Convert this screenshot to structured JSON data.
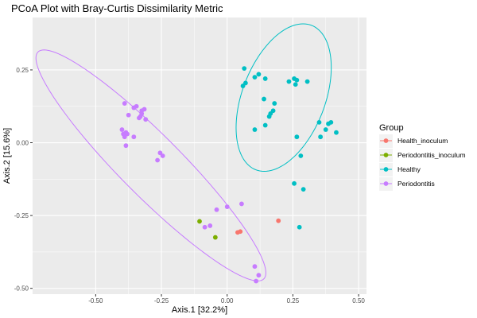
{
  "chart_data": {
    "type": "scatter",
    "title": "PCoA Plot with Bray-Curtis Dissimilarity Metric",
    "xlabel": "Axis.1   [32.2%]",
    "ylabel": "Axis.2   [15.6%]",
    "xlim": [
      -0.74,
      0.53
    ],
    "ylim": [
      -0.52,
      0.43
    ],
    "x_ticks": [
      -0.5,
      -0.25,
      0.0,
      0.25,
      0.5
    ],
    "x_tick_labels": [
      "-0.50",
      "-0.25",
      "0.00",
      "0.25",
      "0.50"
    ],
    "y_ticks": [
      -0.5,
      -0.25,
      0.0,
      0.25
    ],
    "y_tick_labels": [
      "-0.50",
      "-0.25",
      "0.00",
      "0.25"
    ],
    "grid": true,
    "legend_title": "Group",
    "legend_position": "right",
    "series": [
      {
        "name": "Health_inoculum",
        "color": "#F8766D",
        "points": [
          [
            0.05,
            -0.305
          ],
          [
            0.195,
            -0.268
          ],
          [
            0.04,
            -0.308
          ]
        ]
      },
      {
        "name": "Periodontitis_inoculum",
        "color": "#7CAE00",
        "points": [
          [
            -0.105,
            -0.27
          ],
          [
            -0.045,
            -0.325
          ]
        ]
      },
      {
        "name": "Healthy",
        "color": "#00BFC4",
        "points": [
          [
            0.065,
            0.255
          ],
          [
            0.06,
            0.195
          ],
          [
            0.07,
            0.205
          ],
          [
            0.105,
            0.225
          ],
          [
            0.12,
            0.235
          ],
          [
            0.145,
            0.22
          ],
          [
            0.235,
            0.21
          ],
          [
            0.255,
            0.22
          ],
          [
            0.265,
            0.215
          ],
          [
            0.26,
            0.2
          ],
          [
            0.305,
            0.21
          ],
          [
            0.14,
            0.15
          ],
          [
            0.18,
            0.135
          ],
          [
            0.175,
            0.11
          ],
          [
            0.165,
            0.1
          ],
          [
            0.16,
            0.09
          ],
          [
            0.105,
            0.045
          ],
          [
            0.145,
            0.06
          ],
          [
            0.35,
            0.07
          ],
          [
            0.395,
            0.07
          ],
          [
            0.385,
            0.065
          ],
          [
            0.375,
            0.045
          ],
          [
            0.415,
            0.035
          ],
          [
            0.355,
            0.02
          ],
          [
            0.265,
            0.02
          ],
          [
            0.28,
            -0.045
          ],
          [
            0.255,
            -0.14
          ],
          [
            0.29,
            -0.16
          ],
          [
            0.275,
            -0.29
          ]
        ]
      },
      {
        "name": "Periodontitis",
        "color": "#C77CFF",
        "points": [
          [
            -0.39,
            0.135
          ],
          [
            -0.345,
            0.125
          ],
          [
            -0.355,
            0.12
          ],
          [
            -0.315,
            0.115
          ],
          [
            -0.325,
            0.11
          ],
          [
            -0.325,
            0.1
          ],
          [
            -0.375,
            0.095
          ],
          [
            -0.33,
            0.09
          ],
          [
            -0.31,
            0.08
          ],
          [
            -0.335,
            0.085
          ],
          [
            -0.4,
            0.045
          ],
          [
            -0.385,
            0.035
          ],
          [
            -0.395,
            0.03
          ],
          [
            -0.38,
            0.03
          ],
          [
            -0.355,
            0.02
          ],
          [
            -0.39,
            0.02
          ],
          [
            -0.385,
            -0.01
          ],
          [
            -0.255,
            -0.035
          ],
          [
            -0.245,
            -0.045
          ],
          [
            -0.265,
            -0.06
          ],
          [
            -0.04,
            -0.23
          ],
          [
            0.0,
            -0.22
          ],
          [
            0.055,
            -0.21
          ],
          [
            -0.065,
            -0.285
          ],
          [
            -0.085,
            -0.29
          ],
          [
            0.105,
            -0.425
          ],
          [
            0.12,
            -0.455
          ],
          [
            0.11,
            -0.475
          ]
        ]
      }
    ],
    "ellipses": [
      {
        "series": "Healthy",
        "center": [
          0.215,
          0.155
        ],
        "semi_major": 0.27,
        "semi_minor": 0.155,
        "angle_deg": 65,
        "color": "#00BFC4"
      },
      {
        "series": "Periodontitis",
        "center": [
          -0.29,
          -0.078
        ],
        "semi_major": 0.58,
        "semi_minor": 0.11,
        "angle_deg": -42,
        "color": "#C77CFF"
      }
    ]
  }
}
